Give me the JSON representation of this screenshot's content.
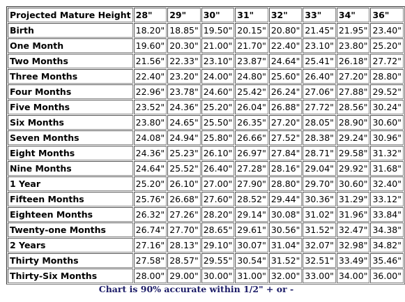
{
  "table": {
    "corner_header": "Projected Mature Height",
    "columns": [
      "28\"",
      "29\"",
      "30\"",
      "31\"",
      "32\"",
      "33\"",
      "34\"",
      "36\""
    ],
    "rows": [
      {
        "label": "Birth",
        "values": [
          "18.20\"",
          "18.85\"",
          "19.50\"",
          "20.15\"",
          "20.80\"",
          "21.45\"",
          "21.95\"",
          "23.40\""
        ]
      },
      {
        "label": "One Month",
        "values": [
          "19.60\"",
          "20.30\"",
          "21.00\"",
          "21.70\"",
          "22.40\"",
          "23.10\"",
          "23.80\"",
          "25.20\""
        ]
      },
      {
        "label": "Two Months",
        "values": [
          "21.56\"",
          "22.33\"",
          "23.10\"",
          "23.87\"",
          "24.64\"",
          "25.41\"",
          "26.18\"",
          "27.72\""
        ]
      },
      {
        "label": "Three Months",
        "values": [
          "22.40\"",
          "23.20\"",
          "24.00\"",
          "24.80\"",
          "25.60\"",
          "26.40\"",
          "27.20\"",
          "28.80\""
        ]
      },
      {
        "label": "Four Months",
        "values": [
          "22.96\"",
          "23.78\"",
          "24.60\"",
          "25.42\"",
          "26.24\"",
          "27.06\"",
          "27.88\"",
          "29.52\""
        ]
      },
      {
        "label": "Five Months",
        "values": [
          "23.52\"",
          "24.36\"",
          "25.20\"",
          "26.04\"",
          "26.88\"",
          "27.72\"",
          "28.56\"",
          "30.24\""
        ]
      },
      {
        "label": "Six Months",
        "values": [
          "23.80\"",
          "24.65\"",
          "25.50\"",
          "26.35\"",
          "27.20\"",
          "28.05\"",
          "28.90\"",
          "30.60\""
        ]
      },
      {
        "label": "Seven Months",
        "values": [
          "24.08\"",
          "24.94\"",
          "25.80\"",
          "26.66\"",
          "27.52\"",
          "28.38\"",
          "29.24\"",
          "30.96\""
        ]
      },
      {
        "label": "Eight Months",
        "values": [
          "24.36\"",
          "25.23\"",
          "26.10\"",
          "26.97\"",
          "27.84\"",
          "28.71\"",
          "29.58\"",
          "31.32\""
        ]
      },
      {
        "label": "Nine Months",
        "values": [
          "24.64\"",
          "25.52\"",
          "26.40\"",
          "27.28\"",
          "28.16\"",
          "29.04\"",
          "29.92\"",
          "31.68\""
        ]
      },
      {
        "label": "1 Year",
        "values": [
          "25.20\"",
          "26.10\"",
          "27.00\"",
          "27.90\"",
          "28.80\"",
          "29.70\"",
          "30.60\"",
          "32.40\""
        ]
      },
      {
        "label": "Fifteen Months",
        "values": [
          "25.76\"",
          "26.68\"",
          "27.60\"",
          "28.52\"",
          "29.44\"",
          "30.36\"",
          "31.29\"",
          "33.12\""
        ]
      },
      {
        "label": "Eighteen Months",
        "values": [
          "26.32\"",
          "27.26\"",
          "28.20\"",
          "29.14\"",
          "30.08\"",
          "31.02\"",
          "31.96\"",
          "33.84\""
        ]
      },
      {
        "label": "Twenty-one Months",
        "values": [
          "26.74\"",
          "27.70\"",
          "28.65\"",
          "29.61\"",
          "30.56\"",
          "31.52\"",
          "32.47\"",
          "34.38\""
        ]
      },
      {
        "label": "2 Years",
        "values": [
          "27.16\"",
          "28.13\"",
          "29.10\"",
          "30.07\"",
          "31.04\"",
          "32.07\"",
          "32.98\"",
          "34.82\""
        ]
      },
      {
        "label": "Thirty Months",
        "values": [
          "27.58\"",
          "28.57\"",
          "29.55\"",
          "30.54\"",
          "31.52\"",
          "32.51\"",
          "33.49\"",
          "35.46\""
        ]
      },
      {
        "label": "Thirty-Six Months",
        "values": [
          "28.00\"",
          "29.00\"",
          "30.00\"",
          "31.00\"",
          "32.00\"",
          "33.00\"",
          "34.00\"",
          "36.00\""
        ]
      }
    ]
  },
  "footnote": "Chart is 90% accurate within 1/2\" + or -",
  "colors": {
    "text": "#000000",
    "footnote": "#1a1a66",
    "border": "#555555"
  }
}
